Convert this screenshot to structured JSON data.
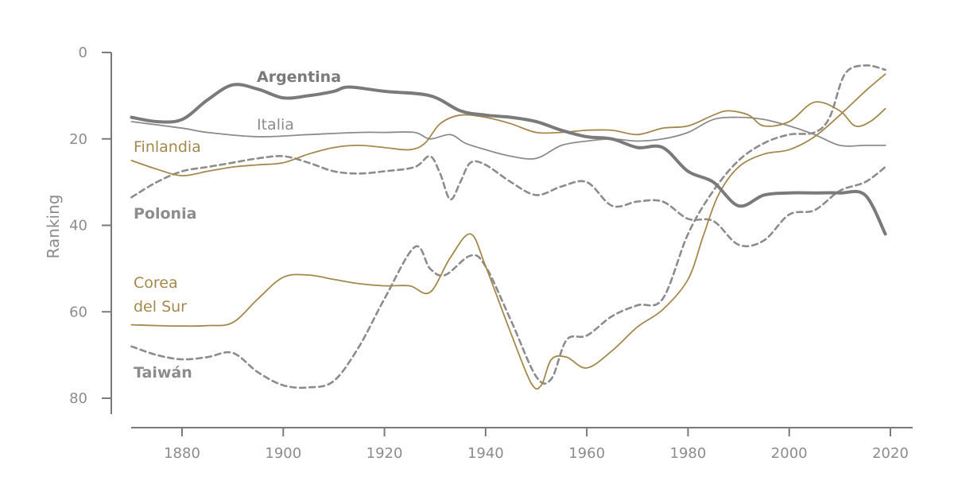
{
  "chart_data": {
    "type": "line",
    "title": "",
    "xlabel": "",
    "ylabel": "Ranking",
    "xlim": [
      1870,
      2022
    ],
    "ylim": [
      0,
      80
    ],
    "y_inverted": true,
    "x_ticks": [
      "1880",
      "1900",
      "1920",
      "1940",
      "1960",
      "1980",
      "2000",
      "2020"
    ],
    "y_ticks": [
      "0",
      "20",
      "40",
      "60",
      "80"
    ],
    "grid": false,
    "legend": "inline labels",
    "colors": {
      "gray": "#7a7a7a",
      "gold": "#a3894e",
      "gray_light": "#8c8c8c"
    },
    "series": [
      {
        "name": "Argentina",
        "color": "#7a7a7a",
        "style": "thick",
        "label_text": [
          "Argentina"
        ],
        "label_bold": true,
        "x": [
          1870,
          1875,
          1880,
          1885,
          1890,
          1895,
          1900,
          1905,
          1910,
          1913,
          1920,
          1929,
          1935,
          1940,
          1945,
          1950,
          1955,
          1960,
          1965,
          1970,
          1975,
          1980,
          1985,
          1990,
          1995,
          2000,
          2005,
          2010,
          2015,
          2019
        ],
        "y": [
          15,
          16,
          15.5,
          11,
          7.5,
          8.5,
          10.5,
          10,
          9,
          8,
          9,
          10,
          13.5,
          14.5,
          15,
          16,
          18,
          19.5,
          20,
          22,
          22,
          27.5,
          30,
          35.5,
          33,
          32.5,
          32.5,
          32.5,
          33,
          42
        ]
      },
      {
        "name": "Italia",
        "color": "#8c8c8c",
        "style": "thin",
        "label_text": [
          "Italia"
        ],
        "label_bold": false,
        "x": [
          1870,
          1880,
          1885,
          1895,
          1905,
          1915,
          1920,
          1926,
          1929,
          1933,
          1936,
          1940,
          1945,
          1950,
          1955,
          1960,
          1965,
          1970,
          1975,
          1980,
          1985,
          1990,
          1995,
          2000,
          2005,
          2010,
          2015,
          2019
        ],
        "y": [
          16,
          17.5,
          18.5,
          19.5,
          19,
          18.5,
          18.5,
          18.5,
          20,
          19,
          21,
          22.5,
          24,
          24.5,
          21.5,
          20.5,
          20,
          20.5,
          20,
          18.5,
          15.5,
          15,
          15.5,
          17,
          19,
          21.5,
          21.5,
          21.5
        ]
      },
      {
        "name": "Finlandia",
        "color": "#a3894e",
        "style": "thin",
        "label_text": [
          "Finlandia"
        ],
        "label_bold": false,
        "x": [
          1870,
          1875,
          1880,
          1885,
          1890,
          1895,
          1900,
          1905,
          1910,
          1915,
          1920,
          1925,
          1928,
          1931,
          1935,
          1940,
          1945,
          1950,
          1955,
          1960,
          1965,
          1970,
          1975,
          1980,
          1985,
          1988,
          1992,
          1995,
          2000,
          2005,
          2010,
          2013,
          2016,
          2019
        ],
        "y": [
          25,
          27,
          28.5,
          27.5,
          26.5,
          26,
          25.5,
          23.5,
          22,
          21.5,
          22,
          22.5,
          21,
          16.5,
          14.5,
          15,
          16.5,
          18.5,
          18.5,
          18,
          18,
          19,
          17.5,
          17,
          14.5,
          13.5,
          14.5,
          17,
          16,
          11.5,
          13.5,
          17,
          16,
          13
        ]
      },
      {
        "name": "Polonia",
        "color": "#8c8c8c",
        "style": "dashed",
        "label_text": [
          "Polonia"
        ],
        "label_bold": true,
        "x": [
          1870,
          1875,
          1880,
          1885,
          1890,
          1895,
          1900,
          1905,
          1910,
          1915,
          1920,
          1926,
          1929,
          1931,
          1933,
          1935,
          1937,
          1940,
          1945,
          1950,
          1955,
          1960,
          1965,
          1970,
          1975,
          1980,
          1985,
          1990,
          1995,
          2000,
          2005,
          2010,
          2015,
          2019
        ],
        "y": [
          33.5,
          30,
          27.5,
          26.5,
          25.5,
          24.5,
          24,
          25.5,
          27.5,
          28,
          27.5,
          26.5,
          24,
          28,
          34,
          30,
          25.5,
          26,
          30,
          33,
          31,
          30,
          35.5,
          34.5,
          34.5,
          38.5,
          39,
          44.5,
          43.5,
          37.5,
          36.5,
          32,
          30,
          26.5
        ]
      },
      {
        "name": "Corea del Sur",
        "color": "#a3894e",
        "style": "thin",
        "label_text": [
          "Corea",
          "del Sur"
        ],
        "label_bold": false,
        "x": [
          1870,
          1875,
          1880,
          1885,
          1890,
          1895,
          1900,
          1905,
          1910,
          1915,
          1920,
          1925,
          1929,
          1933,
          1937,
          1940,
          1945,
          1949,
          1951,
          1953,
          1956,
          1960,
          1965,
          1970,
          1975,
          1980,
          1983,
          1986,
          1990,
          1995,
          2000,
          2005,
          2010,
          2015,
          2019
        ],
        "y": [
          63,
          63.2,
          63.3,
          63.2,
          62.5,
          57,
          52,
          51.5,
          52.5,
          53.5,
          54,
          54,
          55.5,
          47.5,
          42,
          49.5,
          65,
          76.5,
          77,
          71,
          70.5,
          73,
          69,
          63.5,
          59.5,
          52.5,
          42.5,
          33,
          26.5,
          23.5,
          22.5,
          19.5,
          14.5,
          9,
          5
        ]
      },
      {
        "name": "Taiwán",
        "color": "#8c8c8c",
        "style": "dashed",
        "label_text": [
          "Taiwán"
        ],
        "label_bold": true,
        "x": [
          1870,
          1875,
          1880,
          1885,
          1890,
          1895,
          1900,
          1905,
          1910,
          1915,
          1920,
          1926,
          1929,
          1932,
          1937,
          1940,
          1945,
          1950,
          1953,
          1956,
          1960,
          1965,
          1970,
          1975,
          1980,
          1985,
          1990,
          1995,
          2000,
          2005,
          2008,
          2011,
          2015,
          2019
        ],
        "y": [
          68,
          70,
          71,
          70.5,
          69.5,
          74,
          77,
          77.5,
          76,
          68,
          57,
          45,
          50,
          51.5,
          47,
          49.5,
          62,
          75,
          75.5,
          66.5,
          65.5,
          61,
          58.5,
          57,
          42,
          32,
          25,
          21,
          19,
          18.5,
          15,
          5,
          3,
          4
        ]
      }
    ]
  }
}
